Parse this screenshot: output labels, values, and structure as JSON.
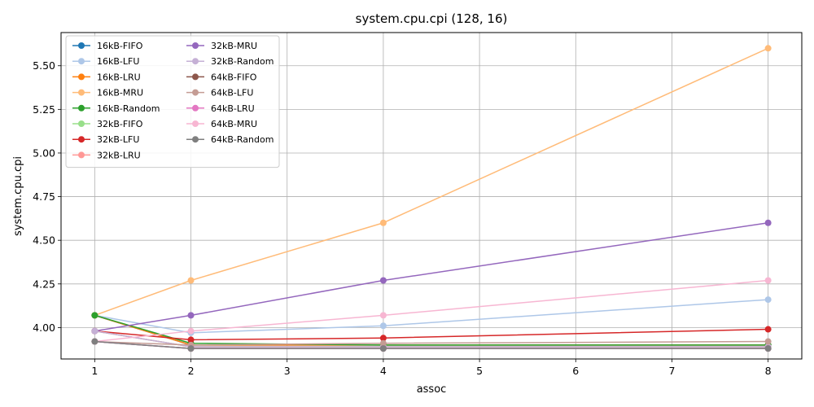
{
  "chart_data": {
    "type": "line",
    "title": "system.cpu.cpi (128, 16)",
    "xlabel": "assoc",
    "ylabel": "system.cpu.cpi",
    "xlim": [
      0.65,
      8.35
    ],
    "ylim": [
      3.82,
      5.69
    ],
    "xticks": [
      1,
      2,
      3,
      4,
      5,
      6,
      7,
      8
    ],
    "yticks": [
      4.0,
      4.25,
      4.5,
      4.75,
      5.0,
      5.25,
      5.5
    ],
    "ytick_labels": [
      "4.00",
      "4.25",
      "4.50",
      "4.75",
      "5.00",
      "5.25",
      "5.50"
    ],
    "grid": true,
    "legend_position": "top-left",
    "legend_columns": 2,
    "x": [
      1,
      2,
      4,
      8
    ],
    "series": [
      {
        "name": "16kB-FIFO",
        "color": "#1f77b4",
        "values": [
          4.07,
          3.9,
          3.9,
          3.9
        ]
      },
      {
        "name": "16kB-LFU",
        "color": "#aec7e8",
        "values": [
          4.07,
          3.97,
          4.01,
          4.16
        ]
      },
      {
        "name": "16kB-LRU",
        "color": "#ff7f0e",
        "values": [
          4.07,
          3.9,
          3.9,
          3.9
        ]
      },
      {
        "name": "16kB-MRU",
        "color": "#ffbb78",
        "values": [
          4.07,
          4.27,
          4.6,
          5.6
        ]
      },
      {
        "name": "16kB-Random",
        "color": "#2ca02c",
        "values": [
          4.07,
          3.91,
          3.9,
          3.9
        ]
      },
      {
        "name": "32kB-FIFO",
        "color": "#98df8a",
        "values": [
          3.98,
          3.89,
          3.89,
          3.89
        ]
      },
      {
        "name": "32kB-LFU",
        "color": "#d62728",
        "values": [
          3.98,
          3.93,
          3.94,
          3.99
        ]
      },
      {
        "name": "32kB-LRU",
        "color": "#ff9896",
        "values": [
          3.98,
          3.89,
          3.89,
          3.89
        ]
      },
      {
        "name": "32kB-MRU",
        "color": "#9467bd",
        "values": [
          3.98,
          4.07,
          4.27,
          4.6
        ]
      },
      {
        "name": "32kB-Random",
        "color": "#c5b0d5",
        "values": [
          3.98,
          3.89,
          3.89,
          3.89
        ]
      },
      {
        "name": "64kB-FIFO",
        "color": "#8c564b",
        "values": [
          3.92,
          3.88,
          3.88,
          3.88
        ]
      },
      {
        "name": "64kB-LFU",
        "color": "#c49c94",
        "values": [
          3.92,
          3.9,
          3.91,
          3.92
        ]
      },
      {
        "name": "64kB-LRU",
        "color": "#e377c2",
        "values": [
          3.92,
          3.88,
          3.88,
          3.88
        ]
      },
      {
        "name": "64kB-MRU",
        "color": "#f7b6d2",
        "values": [
          3.92,
          3.98,
          4.07,
          4.27
        ]
      },
      {
        "name": "64kB-Random",
        "color": "#7f7f7f",
        "values": [
          3.92,
          3.88,
          3.88,
          3.88
        ]
      }
    ]
  }
}
